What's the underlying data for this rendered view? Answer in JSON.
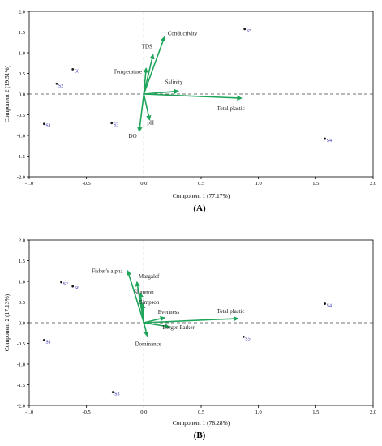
{
  "colors": {
    "vector": "#1fa55a",
    "site_label": "#2b2bb3",
    "axis": "#000000"
  },
  "chart_data": [
    {
      "type": "scatter",
      "subtype": "pca-biplot",
      "panel_label": "(A)",
      "xlabel": "Component 1 (77.17%)",
      "ylabel": "Component 2 (19.51%)",
      "xlim": [
        -1.0,
        2.0
      ],
      "ylim": [
        -2.0,
        2.0
      ],
      "xticks": [
        "-1.0",
        "-0.5",
        "0.0",
        "0.5",
        "1.0",
        "1.5",
        "2.0"
      ],
      "yticks": [
        "2.0",
        "1.5",
        "1.0",
        "0.5",
        "0.0",
        "-0.5",
        "-1.0",
        "-1.5",
        "-2.0"
      ],
      "xtick_values": [
        -1.0,
        -0.5,
        0.0,
        0.5,
        1.0,
        1.5,
        2.0
      ],
      "ytick_values": [
        2.0,
        1.5,
        1.0,
        0.5,
        0.0,
        -0.5,
        -1.0,
        -1.5,
        -2.0
      ],
      "zero_lines": true,
      "points": [
        {
          "name": "S1",
          "x": -0.87,
          "y": -0.72
        },
        {
          "name": "S2",
          "x": -0.76,
          "y": 0.25
        },
        {
          "name": "S3",
          "x": -0.28,
          "y": -0.7
        },
        {
          "name": "S4",
          "x": 1.58,
          "y": -1.08
        },
        {
          "name": "S5",
          "x": 0.88,
          "y": 1.57
        },
        {
          "name": "S6",
          "x": -0.62,
          "y": 0.6
        }
      ],
      "vectors": [
        {
          "name": "Conductivity",
          "x": 0.18,
          "y": 1.38
        },
        {
          "name": "TDS",
          "x": 0.08,
          "y": 0.95
        },
        {
          "name": "Temperature",
          "x": 0.02,
          "y": 0.62
        },
        {
          "name": "Salinity",
          "x": 0.3,
          "y": 0.07
        },
        {
          "name": "Total plastic",
          "x": 0.85,
          "y": -0.1
        },
        {
          "name": "pH",
          "x": 0.05,
          "y": -0.62
        },
        {
          "name": "DO",
          "x": -0.04,
          "y": -0.9
        }
      ]
    },
    {
      "type": "scatter",
      "subtype": "pca-biplot",
      "panel_label": "(B)",
      "xlabel": "Component 1 (78.28%)",
      "ylabel": "Component 2 (17.13%)",
      "xlim": [
        -1.0,
        2.0
      ],
      "ylim": [
        -2.0,
        2.0
      ],
      "xticks": [
        "-1.0",
        "-0.5",
        "0.0",
        "0.5",
        "1.0",
        "1.5",
        "2.0"
      ],
      "yticks": [
        "2.0",
        "1.5",
        "1.0",
        "0.5",
        "0.0",
        "-0.5",
        "-1.0",
        "-1.5",
        "-2.0"
      ],
      "xtick_values": [
        -1.0,
        -0.5,
        0.0,
        0.5,
        1.0,
        1.5,
        2.0
      ],
      "ytick_values": [
        2.0,
        1.5,
        1.0,
        0.5,
        0.0,
        -0.5,
        -1.0,
        -1.5,
        -2.0
      ],
      "zero_lines": true,
      "points": [
        {
          "name": "S1",
          "x": -0.87,
          "y": -0.42
        },
        {
          "name": "S2",
          "x": -0.72,
          "y": 0.98
        },
        {
          "name": "S3",
          "x": -0.27,
          "y": -1.68
        },
        {
          "name": "S4",
          "x": 1.58,
          "y": 0.46
        },
        {
          "name": "S5",
          "x": 0.87,
          "y": -0.34
        },
        {
          "name": "S6",
          "x": -0.62,
          "y": 0.88
        }
      ],
      "vectors": [
        {
          "name": "Fisher's alpha",
          "x": -0.14,
          "y": 1.25
        },
        {
          "name": "Margalef",
          "x": -0.06,
          "y": 0.98
        },
        {
          "name": "Shannon",
          "x": -0.03,
          "y": 0.72
        },
        {
          "name": "Simpson",
          "x": -0.01,
          "y": 0.45
        },
        {
          "name": "Evenness",
          "x": 0.18,
          "y": 0.12
        },
        {
          "name": "Total plastic",
          "x": 0.82,
          "y": 0.1
        },
        {
          "name": "Berger-Parker",
          "x": 0.22,
          "y": -0.1
        },
        {
          "name": "Dominance",
          "x": 0.03,
          "y": -0.32
        }
      ]
    }
  ]
}
